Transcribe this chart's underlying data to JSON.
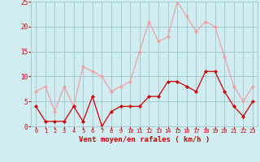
{
  "hours": [
    0,
    1,
    2,
    3,
    4,
    5,
    6,
    7,
    8,
    9,
    10,
    11,
    12,
    13,
    14,
    15,
    16,
    17,
    18,
    19,
    20,
    21,
    22,
    23
  ],
  "wind_avg": [
    4,
    1,
    1,
    1,
    4,
    1,
    6,
    0,
    3,
    4,
    4,
    4,
    6,
    6,
    9,
    9,
    8,
    7,
    11,
    11,
    7,
    4,
    2,
    5
  ],
  "wind_gust": [
    7,
    8,
    3,
    8,
    4,
    12,
    11,
    10,
    7,
    8,
    9,
    15,
    21,
    17,
    18,
    25,
    22,
    19,
    21,
    20,
    14,
    8,
    5,
    8
  ],
  "bg_color": "#d0edf2",
  "grid_color": "#a8c8d0",
  "avg_color": "#cc0000",
  "gust_color": "#f0a0a0",
  "xlabel": "Vent moyen/en rafales ( km/h )",
  "xlabel_color": "#cc0000",
  "tick_color": "#cc0000",
  "ylim": [
    0,
    25
  ],
  "yticks": [
    0,
    5,
    10,
    15,
    20,
    25
  ]
}
